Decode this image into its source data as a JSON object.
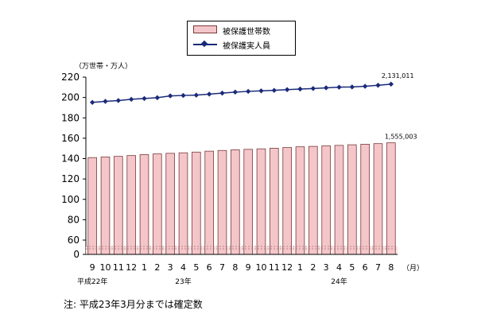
{
  "chart_data": {
    "type": "bar",
    "ylabel": "（万世帯・万人）",
    "ylim": [
      0,
      220
    ],
    "yticks": [
      0,
      60,
      80,
      100,
      120,
      140,
      160,
      180,
      200,
      220
    ],
    "categories": [
      "9",
      "10",
      "11",
      "12",
      "1",
      "2",
      "3",
      "4",
      "5",
      "6",
      "7",
      "8",
      "9",
      "10",
      "11",
      "12",
      "1",
      "2",
      "3",
      "4",
      "5",
      "6",
      "7",
      "8"
    ],
    "x_unit": "（月）",
    "year_labels": [
      {
        "label": "平成22年",
        "category_index": 0
      },
      {
        "label": "23年",
        "category_index": 7
      },
      {
        "label": "24年",
        "category_index": 19
      }
    ],
    "series": [
      {
        "name": "被保護世帯数",
        "type": "bar",
        "color": "#f4c6c9",
        "values": [
          141.0,
          141.6,
          142.2,
          143.0,
          143.9,
          144.6,
          145.2,
          145.7,
          146.4,
          147.3,
          148.0,
          148.6,
          149.1,
          149.6,
          150.2,
          150.9,
          151.6,
          152.0,
          152.5,
          153.0,
          153.6,
          154.1,
          154.7,
          155.5
        ]
      },
      {
        "name": "被保護実人員",
        "type": "line",
        "color": "#1a2a7a",
        "values": [
          195.2,
          196.2,
          197.0,
          198.2,
          199.0,
          199.8,
          201.6,
          202.0,
          202.3,
          203.3,
          204.3,
          205.3,
          206.0,
          206.5,
          207.0,
          207.7,
          208.3,
          208.8,
          209.5,
          210.1,
          210.3,
          211.0,
          212.0,
          213.1
        ]
      }
    ],
    "annotations": [
      "2,131,011",
      "1,555,003"
    ],
    "legend_position": "top-center",
    "grid": false
  },
  "legend": {
    "bar_label": "被保護世帯数",
    "line_label": "被保護実人員"
  },
  "note": "注: 平成23年3月分までは確定数"
}
